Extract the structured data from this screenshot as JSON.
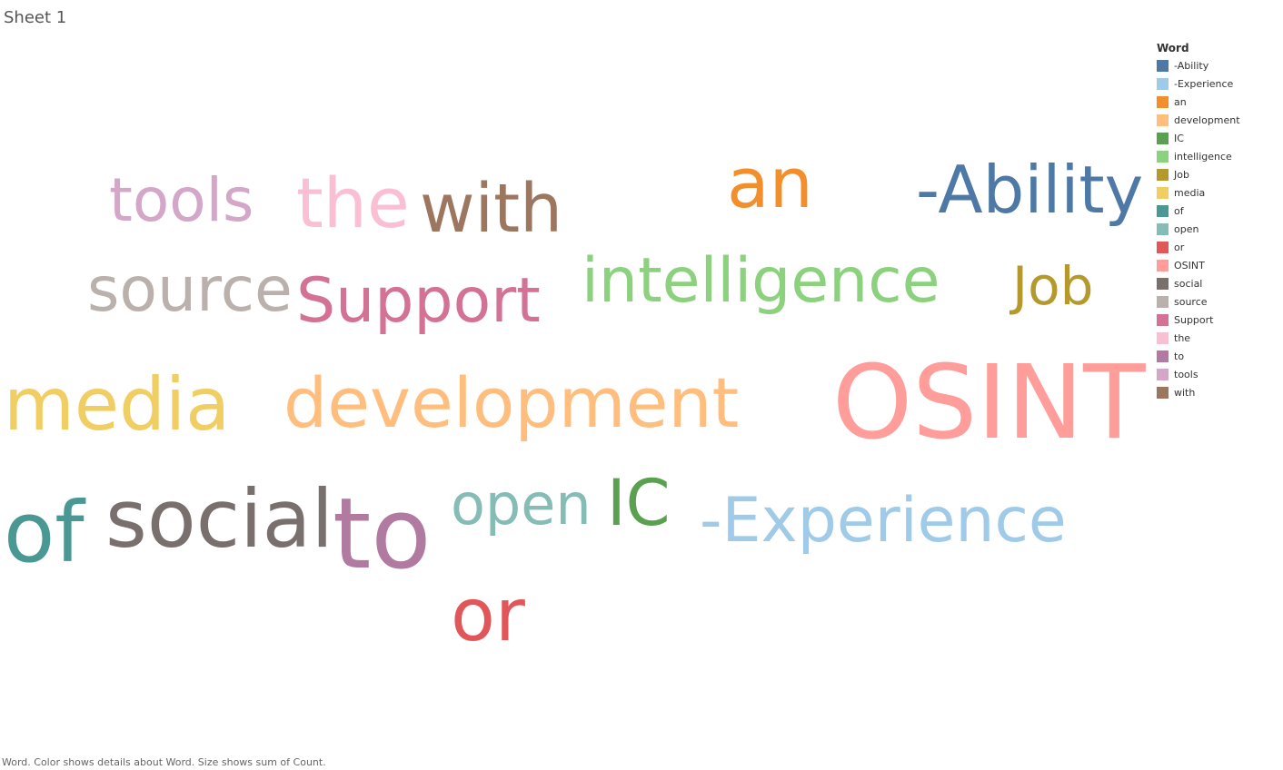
{
  "sheet": {
    "title": "Sheet 1"
  },
  "chart_data": {
    "type": "word-cloud",
    "legend_title": "Word",
    "caption": "Word.  Color shows details about Word.  Size shows sum of Count.",
    "words": [
      {
        "text": "-Ability",
        "color": "#4e79a7",
        "count": 8
      },
      {
        "text": "-Experience",
        "color": "#a0cbe8",
        "count": 7
      },
      {
        "text": "an",
        "color": "#f28e2b",
        "count": 8
      },
      {
        "text": "development",
        "color": "#ffbe7d",
        "count": 8
      },
      {
        "text": "IC",
        "color": "#59a14f",
        "count": 7
      },
      {
        "text": "intelligence",
        "color": "#8cd17d",
        "count": 7
      },
      {
        "text": "Job",
        "color": "#b6992d",
        "count": 6
      },
      {
        "text": "media",
        "color": "#f1ce63",
        "count": 9
      },
      {
        "text": "of",
        "color": "#499894",
        "count": 11
      },
      {
        "text": "open",
        "color": "#86bcb6",
        "count": 6
      },
      {
        "text": "or",
        "color": "#e15759",
        "count": 8
      },
      {
        "text": "OSINT",
        "color": "#ff9d9a",
        "count": 13
      },
      {
        "text": "social",
        "color": "#79706e",
        "count": 9
      },
      {
        "text": "source",
        "color": "#bab0ac",
        "count": 7
      },
      {
        "text": "Support",
        "color": "#d37295",
        "count": 7
      },
      {
        "text": "the",
        "color": "#fabfd2",
        "count": 8
      },
      {
        "text": "to",
        "color": "#b07aa1",
        "count": 12
      },
      {
        "text": "tools",
        "color": "#d4a6c8",
        "count": 7
      },
      {
        "text": "with",
        "color": "#9d7660",
        "count": 8
      }
    ]
  }
}
